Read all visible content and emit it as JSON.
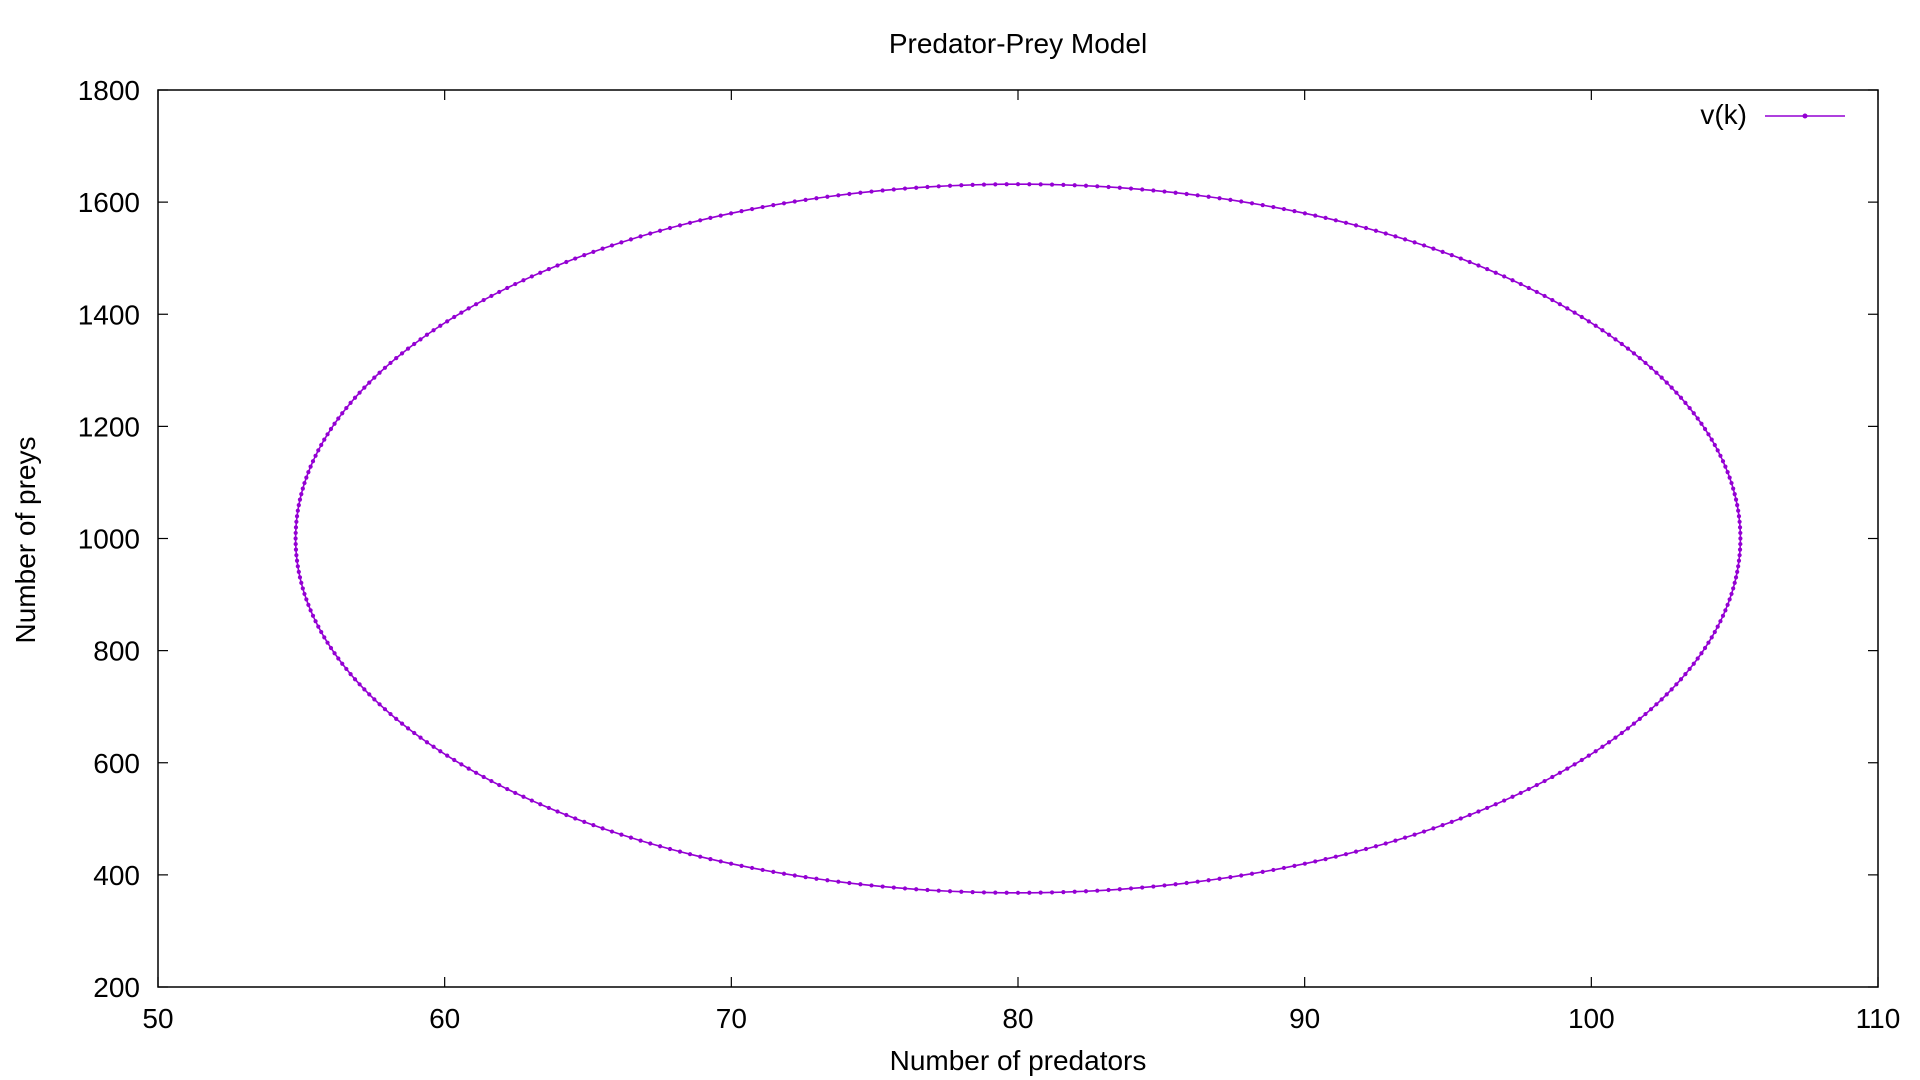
{
  "chart_data": {
    "type": "line",
    "title": "Predator-Prey Model",
    "xlabel": "Number of predators",
    "ylabel": "Number of preys",
    "xlim": [
      50,
      110
    ],
    "ylim": [
      200,
      1800
    ],
    "xticks": [
      "50",
      "60",
      "70",
      "80",
      "90",
      "100",
      "110"
    ],
    "yticks": [
      "200",
      "400",
      "600",
      "800",
      "1000",
      "1200",
      "1400",
      "1600",
      "1800"
    ],
    "grid": false,
    "legend_position": "top-right",
    "series": [
      {
        "name": "v(k)",
        "color": "#9400d3",
        "marker": "point",
        "trajectory": {
          "shape": "closed-orbit",
          "center": [
            80,
            1000
          ],
          "x_range": [
            54.8,
            105.2
          ],
          "y_range": [
            368,
            1632
          ],
          "point_count": 400
        }
      }
    ]
  }
}
